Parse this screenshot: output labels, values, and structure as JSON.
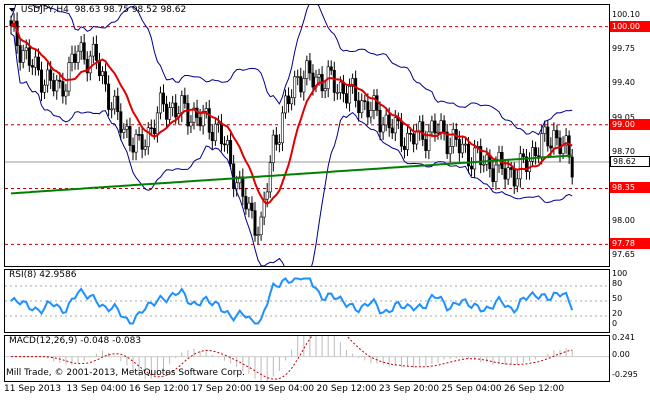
{
  "main": {
    "symbol": "USDJPY,H4",
    "ohlc": "98.63 98.75 98.52 98.62",
    "ticks": [
      "100.10",
      "99.75",
      "99.40",
      "99.05",
      "98.70",
      "98.35",
      "98.00",
      "97.65"
    ],
    "tick_values": [
      100.1,
      99.75,
      99.4,
      99.05,
      98.7,
      98.35,
      98.0,
      97.65
    ],
    "levels": [
      {
        "label": "100.00",
        "value": 100.0,
        "kind": "red"
      },
      {
        "label": "99.00",
        "value": 99.0,
        "kind": "red"
      },
      {
        "label": "98.35",
        "value": 98.35,
        "kind": "red"
      },
      {
        "label": "97.78",
        "value": 97.78,
        "kind": "red"
      },
      {
        "label": "98.62",
        "value": 98.62,
        "kind": "white"
      }
    ],
    "ymin": 97.56,
    "ymax": 100.22,
    "colors": {
      "ma_fast": "#e00000",
      "ma_slow": "#008000",
      "bands": "#00008b",
      "candle": "#000000",
      "level": "#c00000"
    }
  },
  "rsi": {
    "label": "RSI(8) 42.9586",
    "ticks": [
      "100",
      "80",
      "50",
      "20",
      "0"
    ],
    "tick_values": [
      100,
      80,
      50,
      20,
      0
    ],
    "color": "#1e90ff"
  },
  "macd": {
    "label": "MACD(12,26,9) -0.048 -0.083",
    "ticks": [
      "0.241",
      "0.00",
      "-0.295"
    ],
    "tick_values": [
      0.241,
      0.0,
      -0.295
    ],
    "color": "#c00000"
  },
  "footer": {
    "credit": "Mill Trade, © 2001-2013, MetaQuotes Software Corp."
  },
  "xaxis": [
    {
      "label": "11 Sep 2013",
      "pos": 0
    },
    {
      "label": "13 Sep 04:00",
      "pos": 1
    },
    {
      "label": "16 Sep 12:00",
      "pos": 2
    },
    {
      "label": "17 Sep 20:00",
      "pos": 3
    },
    {
      "label": "19 Sep 04:00",
      "pos": 4
    },
    {
      "label": "20 Sep 12:00",
      "pos": 5
    },
    {
      "label": "23 Sep 20:00",
      "pos": 6
    },
    {
      "label": "25 Sep 04:00",
      "pos": 7
    },
    {
      "label": "26 Sep 12:00",
      "pos": 8
    }
  ]
}
